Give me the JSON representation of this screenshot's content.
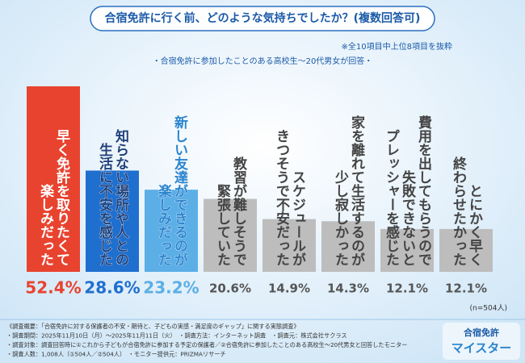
{
  "chart_data": {
    "type": "bar",
    "title": "合宿免許に行く前、どのような気持ちでしたか？(複数回答可)",
    "note": "※全10項目中上位8項目を抜粋",
    "subtitle": "・合宿免許に参加したことのある高校生〜20代男女が回答・",
    "categories": [
      [
        "早く免許を取りたくて",
        "楽しみだった"
      ],
      [
        "知らない場所や人との",
        "生活に不安を感じた"
      ],
      [
        "新しい友達ができるのが",
        "楽しみだった"
      ],
      [
        "教習が難しそうで",
        "緊張していた"
      ],
      [
        "スケジュールが",
        "きつそうで不安だった"
      ],
      [
        "家を離れて生活するのが",
        "少し寂しかった"
      ],
      [
        "費用を出してもらうので",
        "失敗できないと",
        "プレッシャーを感じた"
      ],
      [
        "とにかく早く",
        "終わらせたかった"
      ]
    ],
    "values": [
      52.4,
      28.6,
      23.2,
      20.6,
      14.9,
      14.3,
      12.1,
      12.1
    ],
    "value_labels": [
      "52.4%",
      "28.6%",
      "23.2%",
      "20.6%",
      "14.9%",
      "14.3%",
      "12.1%",
      "12.1%"
    ],
    "colors": [
      "#e8432f",
      "#1f6fcf",
      "#5caee6",
      "#bdbdbd",
      "#bdbdbd",
      "#bdbdbd",
      "#bdbdbd",
      "#bdbdbd"
    ],
    "label_colors": [
      "#ffffff",
      "#1d3f7a",
      "#2a84cf",
      "#444444",
      "#444444",
      "#444444",
      "#444444",
      "#444444"
    ],
    "value_label_colors": [
      "#e8432f",
      "#1f6fcf",
      "#5caee6",
      "#555555",
      "#555555",
      "#555555",
      "#555555",
      "#555555"
    ],
    "sample_note": "(n=504人)",
    "survey_notes": [
      "《調査概要：「合宿免許に対する保護者の不安・期待と、子どもの実感・満足度のギャップ」に関する実態調査》",
      "・調査期間：2025年11月10日（月）〜2025年11月11日（火）　・調査方法：インターネット調査　・調査元：株式会社サクラス",
      "・調査対象：調査回答時に①これから子どもが合宿免許に参加する予定の保護者／②合宿免許に参加したことのある高校生〜20代男女と回答したモニター",
      "・調査人数：1,008人（①504人／②504人）　・モニター提供元：PRIZMAリサーチ"
    ],
    "logo": [
      "合宿免許",
      "マイスター"
    ]
  }
}
